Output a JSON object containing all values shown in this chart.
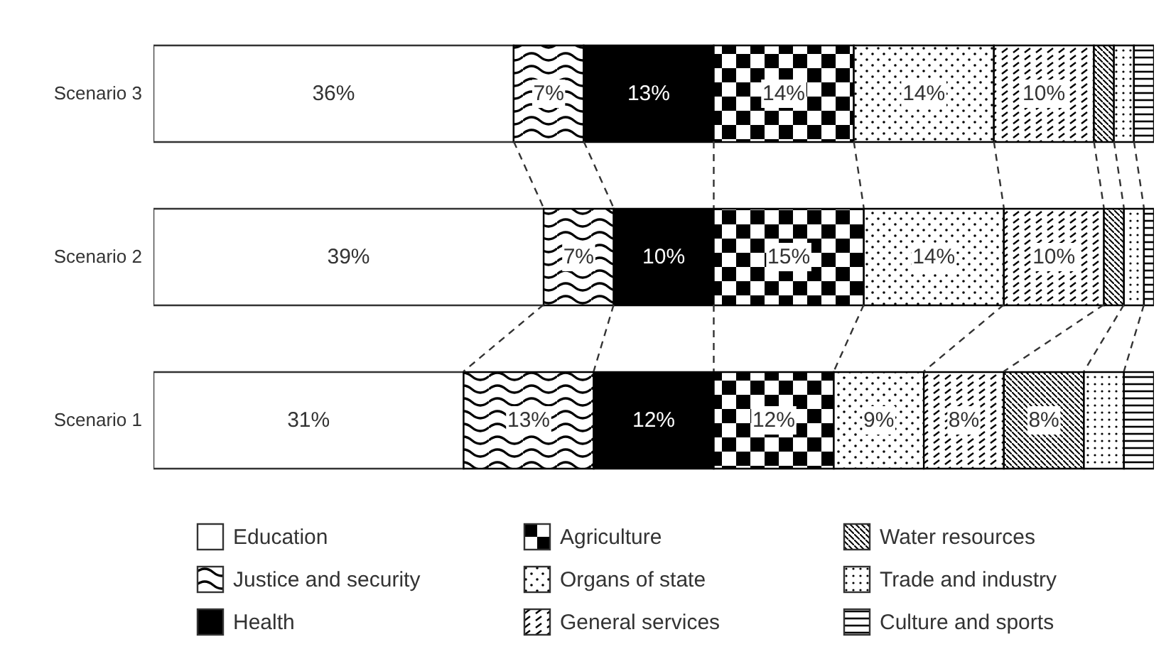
{
  "chart_data": {
    "type": "bar",
    "orientation": "horizontal",
    "stacked": true,
    "categories": [
      "Scenario 3",
      "Scenario 2",
      "Scenario 1"
    ],
    "xlim": [
      0,
      100
    ],
    "tick_labels": "y",
    "legend": "bottom",
    "series": [
      {
        "name": "Education",
        "color": "#ffffff",
        "values": [
          36,
          39,
          31
        ],
        "value_labels": [
          "36%",
          "39%",
          "31%"
        ]
      },
      {
        "name": "Justice and security",
        "color": "#000000",
        "values": [
          7,
          7,
          13
        ],
        "value_labels": [
          "7%",
          "7%",
          "13%"
        ]
      },
      {
        "name": "Health",
        "color": "#000000",
        "values": [
          13,
          10,
          12
        ],
        "value_labels": [
          "13%",
          "10%",
          "12%"
        ]
      },
      {
        "name": "Agriculture",
        "color": "#000000",
        "values": [
          14,
          15,
          12
        ],
        "value_labels": [
          "14%",
          "15%",
          "12%"
        ]
      },
      {
        "name": "Organs of state",
        "color": "#000000",
        "values": [
          14,
          14,
          9
        ],
        "value_labels": [
          "14%",
          "14%",
          "9%"
        ]
      },
      {
        "name": "General services",
        "color": "#000000",
        "values": [
          10,
          10,
          8
        ],
        "value_labels": [
          "10%",
          "10%",
          "8%"
        ]
      },
      {
        "name": "Water resources",
        "color": "#000000",
        "values": [
          2,
          2,
          8
        ],
        "value_labels": [
          null,
          null,
          "8%"
        ]
      },
      {
        "name": "Trade and industry",
        "color": "#000000",
        "values": [
          2,
          2,
          4
        ],
        "value_labels": [
          null,
          null,
          null
        ]
      },
      {
        "name": "Culture and sports",
        "color": "#000000",
        "values": [
          2,
          1,
          3
        ],
        "value_labels": [
          null,
          null,
          null
        ]
      }
    ]
  }
}
